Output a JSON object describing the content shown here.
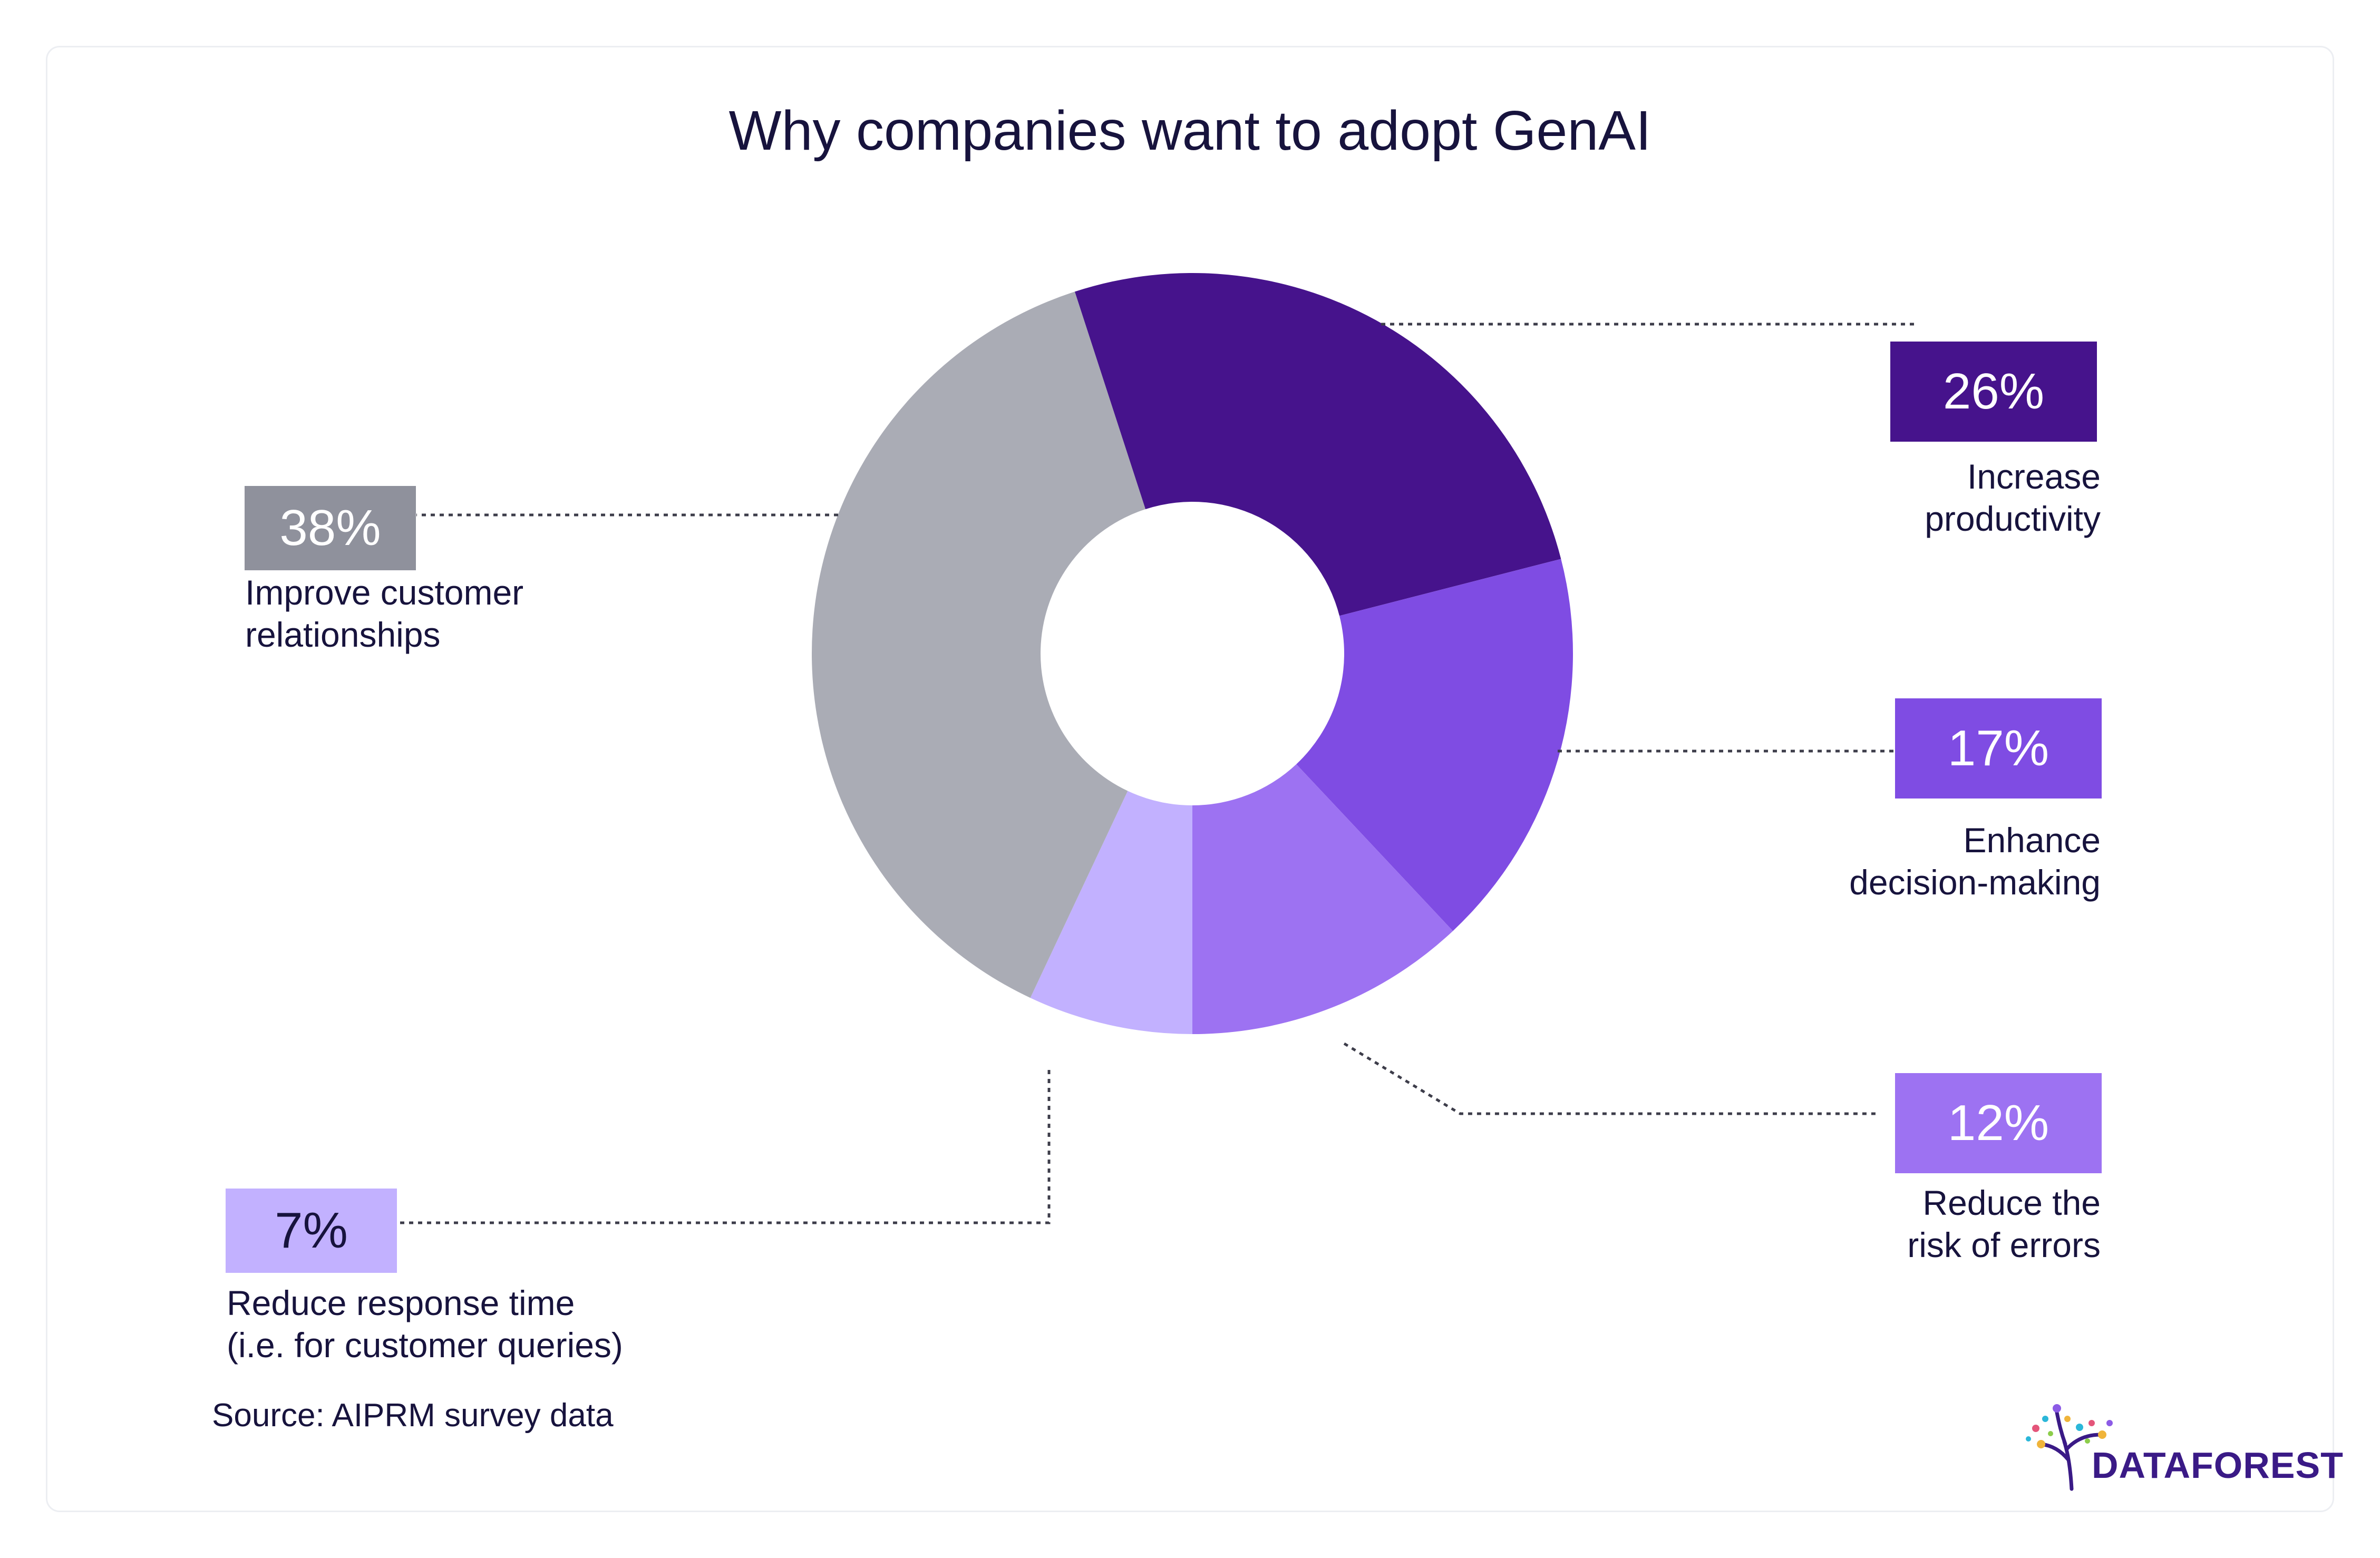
{
  "chart_data": {
    "type": "donut",
    "title": "Why companies want to adopt GenAI",
    "slices": [
      {
        "label": "Increase productivity",
        "label_lines": [
          "Increase",
          "productivity"
        ],
        "value": 26,
        "value_label": "26%",
        "color": "#46138c"
      },
      {
        "label": "Enhance decision-making",
        "label_lines": [
          "Enhance",
          "decision-making"
        ],
        "value": 17,
        "value_label": "17%",
        "color": "#7f4ce3"
      },
      {
        "label": "Reduce the risk of errors",
        "label_lines": [
          "Reduce the",
          "risk of errors"
        ],
        "value": 12,
        "value_label": "12%",
        "color": "#9d72f2"
      },
      {
        "label": "Reduce response time (i.e. for customer queries)",
        "label_lines": [
          "Reduce response time",
          "(i.e. for customer queries)"
        ],
        "value": 7,
        "value_label": "7%",
        "color": "#c2b1ff",
        "label_color": "#17133d"
      },
      {
        "label": "Improve customer relationships",
        "label_lines": [
          "Improve customer",
          "relationships"
        ],
        "value": 38,
        "value_label": "38%",
        "color": "#aaacb5",
        "badge_color": "#8f919c"
      }
    ],
    "legend": "none"
  },
  "source": "Source: AIPRM survey data",
  "logo": {
    "name": "dataforest-logo",
    "text": "DATAFOREST",
    "color": "#3a1a86"
  }
}
